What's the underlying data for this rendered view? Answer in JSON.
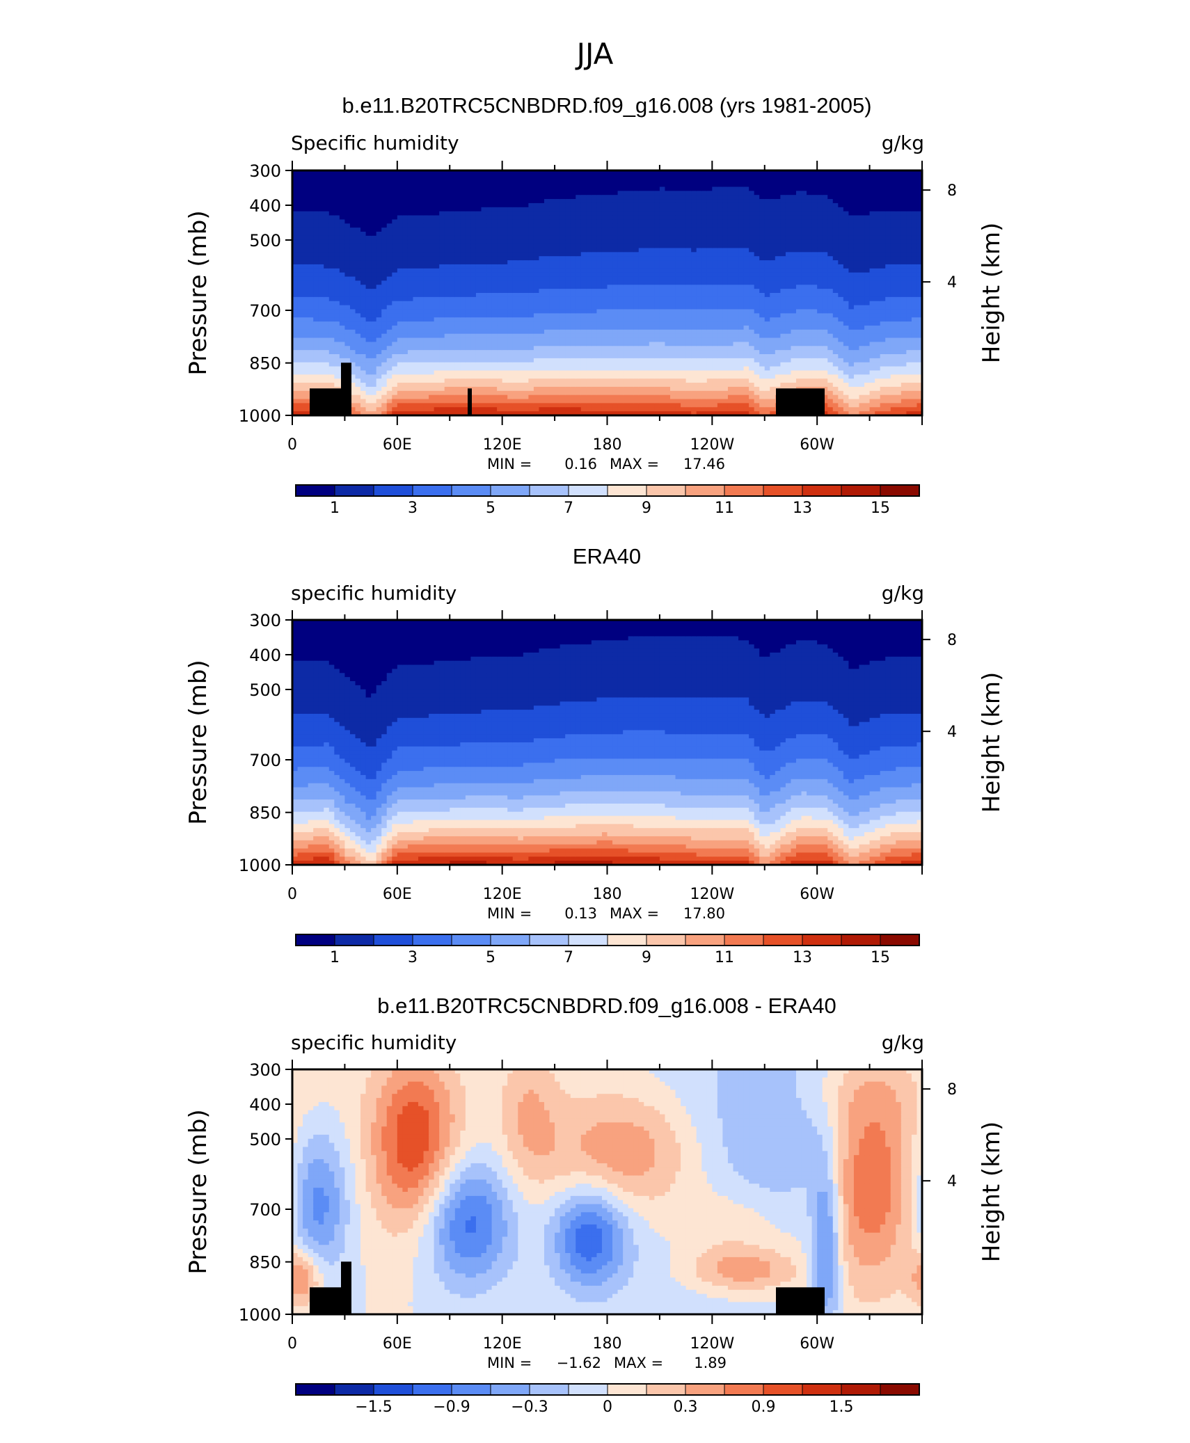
{
  "main_title": "JJA",
  "colors": {
    "seq": [
      "#000080",
      "#0d2aa6",
      "#1f4fd9",
      "#3b6fee",
      "#5b8cf5",
      "#7fa7f8",
      "#a7c2fb",
      "#d1e0fd",
      "#fde5d3",
      "#fbc6ab",
      "#f8a27f",
      "#f27a52",
      "#e65128",
      "#cf3010",
      "#b01a05",
      "#8a0a00"
    ],
    "div": [
      "#000080",
      "#0d2aa6",
      "#1f4fd9",
      "#3b6fee",
      "#5b8cf5",
      "#7fa7f8",
      "#a7c2fb",
      "#d1e0fd",
      "#fde5d3",
      "#fbc6ab",
      "#f8a27f",
      "#f27a52",
      "#e65128",
      "#cf3010",
      "#b01a05",
      "#8a0a00"
    ],
    "land": "#000000"
  },
  "chart_data": [
    {
      "type": "heatmap",
      "title": "b.e11.B20TRC5CNBDRD.f09_g16.008 (yrs 1981-2005)",
      "left_label": "Specific humidity",
      "right_label": "g/kg",
      "ylabel": "Pressure (mb)",
      "ylabel_right": "Height (km)",
      "y_ticks": [
        "300",
        "400",
        "500",
        "700",
        "850",
        "1000"
      ],
      "y_ticks_right": [
        "8",
        "4"
      ],
      "x_ticks": [
        "0",
        "60E",
        "120E",
        "180",
        "120W",
        "60W"
      ],
      "stats": {
        "min_label": "MIN =",
        "min": "0.16",
        "max_label": "MAX =",
        "max": "17.46"
      },
      "colorbar_labels": [
        "1",
        "3",
        "5",
        "7",
        "9",
        "11",
        "13",
        "15"
      ],
      "mode": "seq",
      "lon": [
        0,
        20,
        30,
        45,
        60,
        90,
        110,
        130,
        150,
        180,
        210,
        230,
        260,
        270,
        290,
        305,
        320,
        340,
        360
      ],
      "surface_q": [
        15,
        15,
        14,
        11,
        15,
        15.5,
        15.5,
        15,
        15.5,
        15,
        15,
        14.5,
        15,
        13,
        15,
        15,
        12,
        14,
        15
      ],
      "min": 0.16,
      "max": 17.46,
      "land": true
    },
    {
      "type": "heatmap",
      "title": "ERA40",
      "left_label": "specific humidity",
      "right_label": "g/kg",
      "ylabel": "Pressure (mb)",
      "ylabel_right": "Height (km)",
      "y_ticks": [
        "300",
        "400",
        "500",
        "700",
        "850",
        "1000"
      ],
      "y_ticks_right": [
        "8",
        "4"
      ],
      "x_ticks": [
        "0",
        "60E",
        "120E",
        "180",
        "120W",
        "60W"
      ],
      "stats": {
        "min_label": "MIN =",
        "min": "0.13",
        "max_label": "MAX =",
        "max": "17.80"
      },
      "colorbar_labels": [
        "1",
        "3",
        "5",
        "7",
        "9",
        "11",
        "13",
        "15"
      ],
      "mode": "seq",
      "lon": [
        0,
        20,
        30,
        45,
        60,
        90,
        110,
        130,
        150,
        180,
        210,
        230,
        260,
        270,
        290,
        305,
        320,
        340,
        360
      ],
      "surface_q": [
        15,
        16,
        13,
        10,
        15.5,
        16,
        16,
        15.5,
        16,
        16,
        15.5,
        15,
        15,
        12,
        15.5,
        15.5,
        12,
        14.5,
        15.5
      ],
      "min": 0.13,
      "max": 17.8,
      "land": false
    },
    {
      "type": "heatmap",
      "title": "b.e11.B20TRC5CNBDRD.f09_g16.008 - ERA40",
      "left_label": "specific humidity",
      "right_label": "g/kg",
      "ylabel": "Pressure (mb)",
      "ylabel_right": "Height (km)",
      "y_ticks": [
        "300",
        "400",
        "500",
        "700",
        "850",
        "1000"
      ],
      "y_ticks_right": [
        "8",
        "4"
      ],
      "x_ticks": [
        "0",
        "60E",
        "120E",
        "180",
        "120W",
        "60W"
      ],
      "stats": {
        "min_label": "MIN =",
        "min": "−1.62",
        "max_label": "MAX =",
        "max": "1.89"
      },
      "colorbar_labels": [
        "−1.5",
        "−0.9",
        "−0.3",
        "0",
        "0.3",
        "0.9",
        "1.5"
      ],
      "mode": "div",
      "min": -1.62,
      "max": 1.89,
      "land": true
    }
  ]
}
